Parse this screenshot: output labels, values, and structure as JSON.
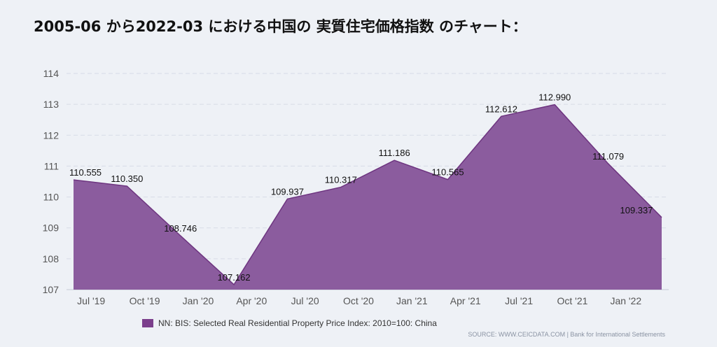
{
  "title": "2005-06 から2022-03 における中国の 実質住宅価格指数 のチャート：",
  "legend_label": "NN: BIS: Selected Real Residential Property Price Index: 2010=100: China",
  "source": "SOURCE: WWW.CEICDATA.COM | Bank for International Settlements",
  "colors": {
    "area_fill": "#8b5c9e",
    "area_line": "#6e3580",
    "legend": "#7b3f8c",
    "grid": "#d7dce6"
  },
  "chart_data": {
    "type": "area",
    "x": [
      "2019-06",
      "2019-09",
      "2019-12",
      "2020-03",
      "2020-06",
      "2020-09",
      "2020-12",
      "2021-03",
      "2021-06",
      "2021-09",
      "2021-12",
      "2022-03"
    ],
    "values": [
      110.555,
      110.35,
      108.746,
      107.162,
      109.937,
      110.317,
      111.186,
      110.565,
      112.612,
      112.99,
      111.079,
      109.337
    ],
    "data_labels": [
      "110.555",
      "110.350",
      "108.746",
      "107.162",
      "109.937",
      "110.317",
      "111.186",
      "110.565",
      "112.612",
      "112.990",
      "111.079",
      "109.337"
    ],
    "x_tick_labels": [
      "Jul '19",
      "Oct '19",
      "Jan '20",
      "Apr '20",
      "Jul '20",
      "Oct '20",
      "Jan '21",
      "Apr '21",
      "Jul '21",
      "Oct '21",
      "Jan '22"
    ],
    "y_tick_labels": [
      "107",
      "108",
      "109",
      "110",
      "111",
      "112",
      "113",
      "114"
    ],
    "ylim": [
      107,
      114
    ],
    "grid": true,
    "legend_position": "bottom"
  }
}
